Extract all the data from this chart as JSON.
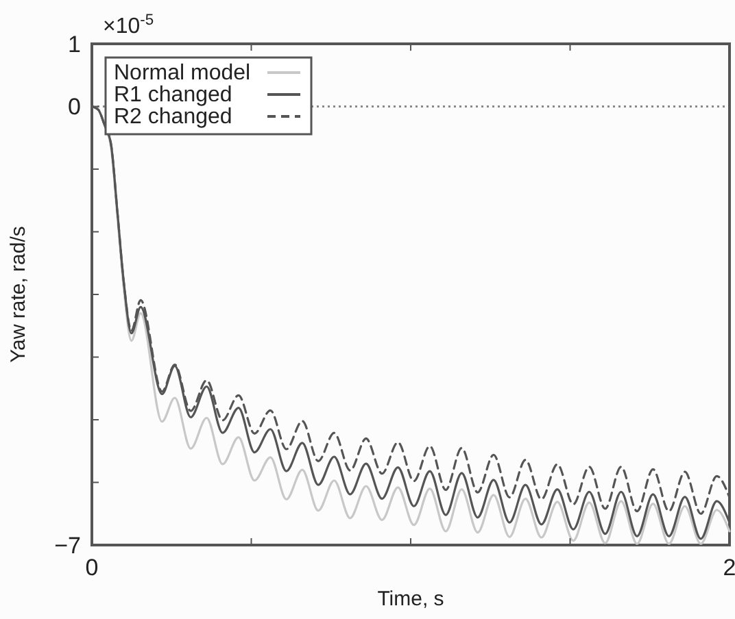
{
  "chart_data": {
    "type": "line",
    "xlabel": "Time,  s",
    "ylabel": "Yaw rate,  rad/s",
    "annotations": [
      "×10$^{-5}$"
    ],
    "x": [
      0,
      0.02,
      0.04,
      0.06,
      0.08,
      0.1,
      0.124,
      0.153,
      0.22,
      0.26,
      0.31,
      0.36,
      0.41,
      0.46,
      0.51,
      0.56,
      0.61,
      0.66,
      0.71,
      0.76,
      0.81,
      0.86,
      0.91,
      0.96,
      1.01,
      1.06,
      1.11,
      1.16,
      1.21,
      1.26,
      1.31,
      1.36,
      1.41,
      1.46,
      1.51,
      1.56,
      1.61,
      1.66,
      1.71,
      1.76,
      1.81,
      1.86,
      1.91,
      1.96,
      2.0
    ],
    "series": [
      {
        "name": "Normal model",
        "color": "#c8c8c8",
        "line_style": "solid",
        "values": [
          0,
          -0.05,
          -0.3,
          -0.65,
          -1.75,
          -2.9,
          -3.74,
          -3.3,
          -5.03,
          -4.65,
          -5.46,
          -4.97,
          -5.71,
          -5.28,
          -5.97,
          -5.6,
          -6.27,
          -5.8,
          -6.45,
          -5.97,
          -6.57,
          -6.06,
          -6.6,
          -6.08,
          -6.68,
          -6.1,
          -6.78,
          -6.11,
          -6.8,
          -6.2,
          -6.87,
          -6.26,
          -6.88,
          -6.31,
          -6.93,
          -6.32,
          -6.97,
          -6.3,
          -6.98,
          -6.34,
          -6.98,
          -6.38,
          -6.98,
          -6.44,
          -6.78
        ]
      },
      {
        "name": "R1 changed",
        "color": "#555555",
        "line_style": "solid",
        "values": [
          0,
          -0.05,
          -0.3,
          -0.6,
          -1.68,
          -2.8,
          -3.62,
          -3.2,
          -4.59,
          -4.14,
          -4.96,
          -4.47,
          -5.21,
          -4.81,
          -5.52,
          -5.15,
          -5.82,
          -5.37,
          -6.04,
          -5.59,
          -6.19,
          -5.7,
          -6.26,
          -5.76,
          -6.38,
          -5.82,
          -6.52,
          -5.85,
          -6.56,
          -5.96,
          -6.64,
          -6.04,
          -6.67,
          -6.11,
          -6.75,
          -6.15,
          -6.82,
          -6.15,
          -6.86,
          -6.19,
          -6.86,
          -6.23,
          -6.9,
          -6.3,
          -6.64
        ]
      },
      {
        "name": "R2 changed",
        "color": "#555555",
        "line_style": "dashed",
        "values": [
          0,
          -0.05,
          -0.3,
          -0.6,
          -1.68,
          -2.8,
          -3.58,
          -3.09,
          -4.55,
          -4.12,
          -4.86,
          -4.37,
          -5.01,
          -4.61,
          -5.22,
          -4.85,
          -5.47,
          -5.02,
          -5.66,
          -5.21,
          -5.81,
          -5.3,
          -5.86,
          -5.36,
          -5.98,
          -5.42,
          -6.12,
          -5.45,
          -6.16,
          -5.56,
          -6.24,
          -5.64,
          -6.27,
          -5.71,
          -6.35,
          -5.75,
          -6.42,
          -5.75,
          -6.46,
          -5.79,
          -6.46,
          -5.83,
          -6.5,
          -5.9,
          -6.24
        ]
      }
    ],
    "xlim": [
      0,
      2
    ],
    "ylim": [
      -7,
      1
    ],
    "xticks": [
      0,
      {
        "value": 0.5,
        "label": null
      },
      {
        "value": 1,
        "label": null
      },
      {
        "value": 1.5,
        "label": null
      },
      2
    ],
    "yticks": [
      {
        "value": -7,
        "label": "−7"
      },
      {
        "value": -6,
        "label": null
      },
      {
        "value": -5,
        "label": null
      },
      {
        "value": -4,
        "label": null
      },
      {
        "value": -3,
        "label": null
      },
      {
        "value": -2,
        "label": null
      },
      {
        "value": -1,
        "label": null
      },
      0,
      1
    ],
    "ref_lines": [
      {
        "axis": "y",
        "value": 0,
        "color": "#888888",
        "line_style": "dotted"
      }
    ],
    "legend": "top left",
    "grid": false,
    "marker": "none"
  }
}
